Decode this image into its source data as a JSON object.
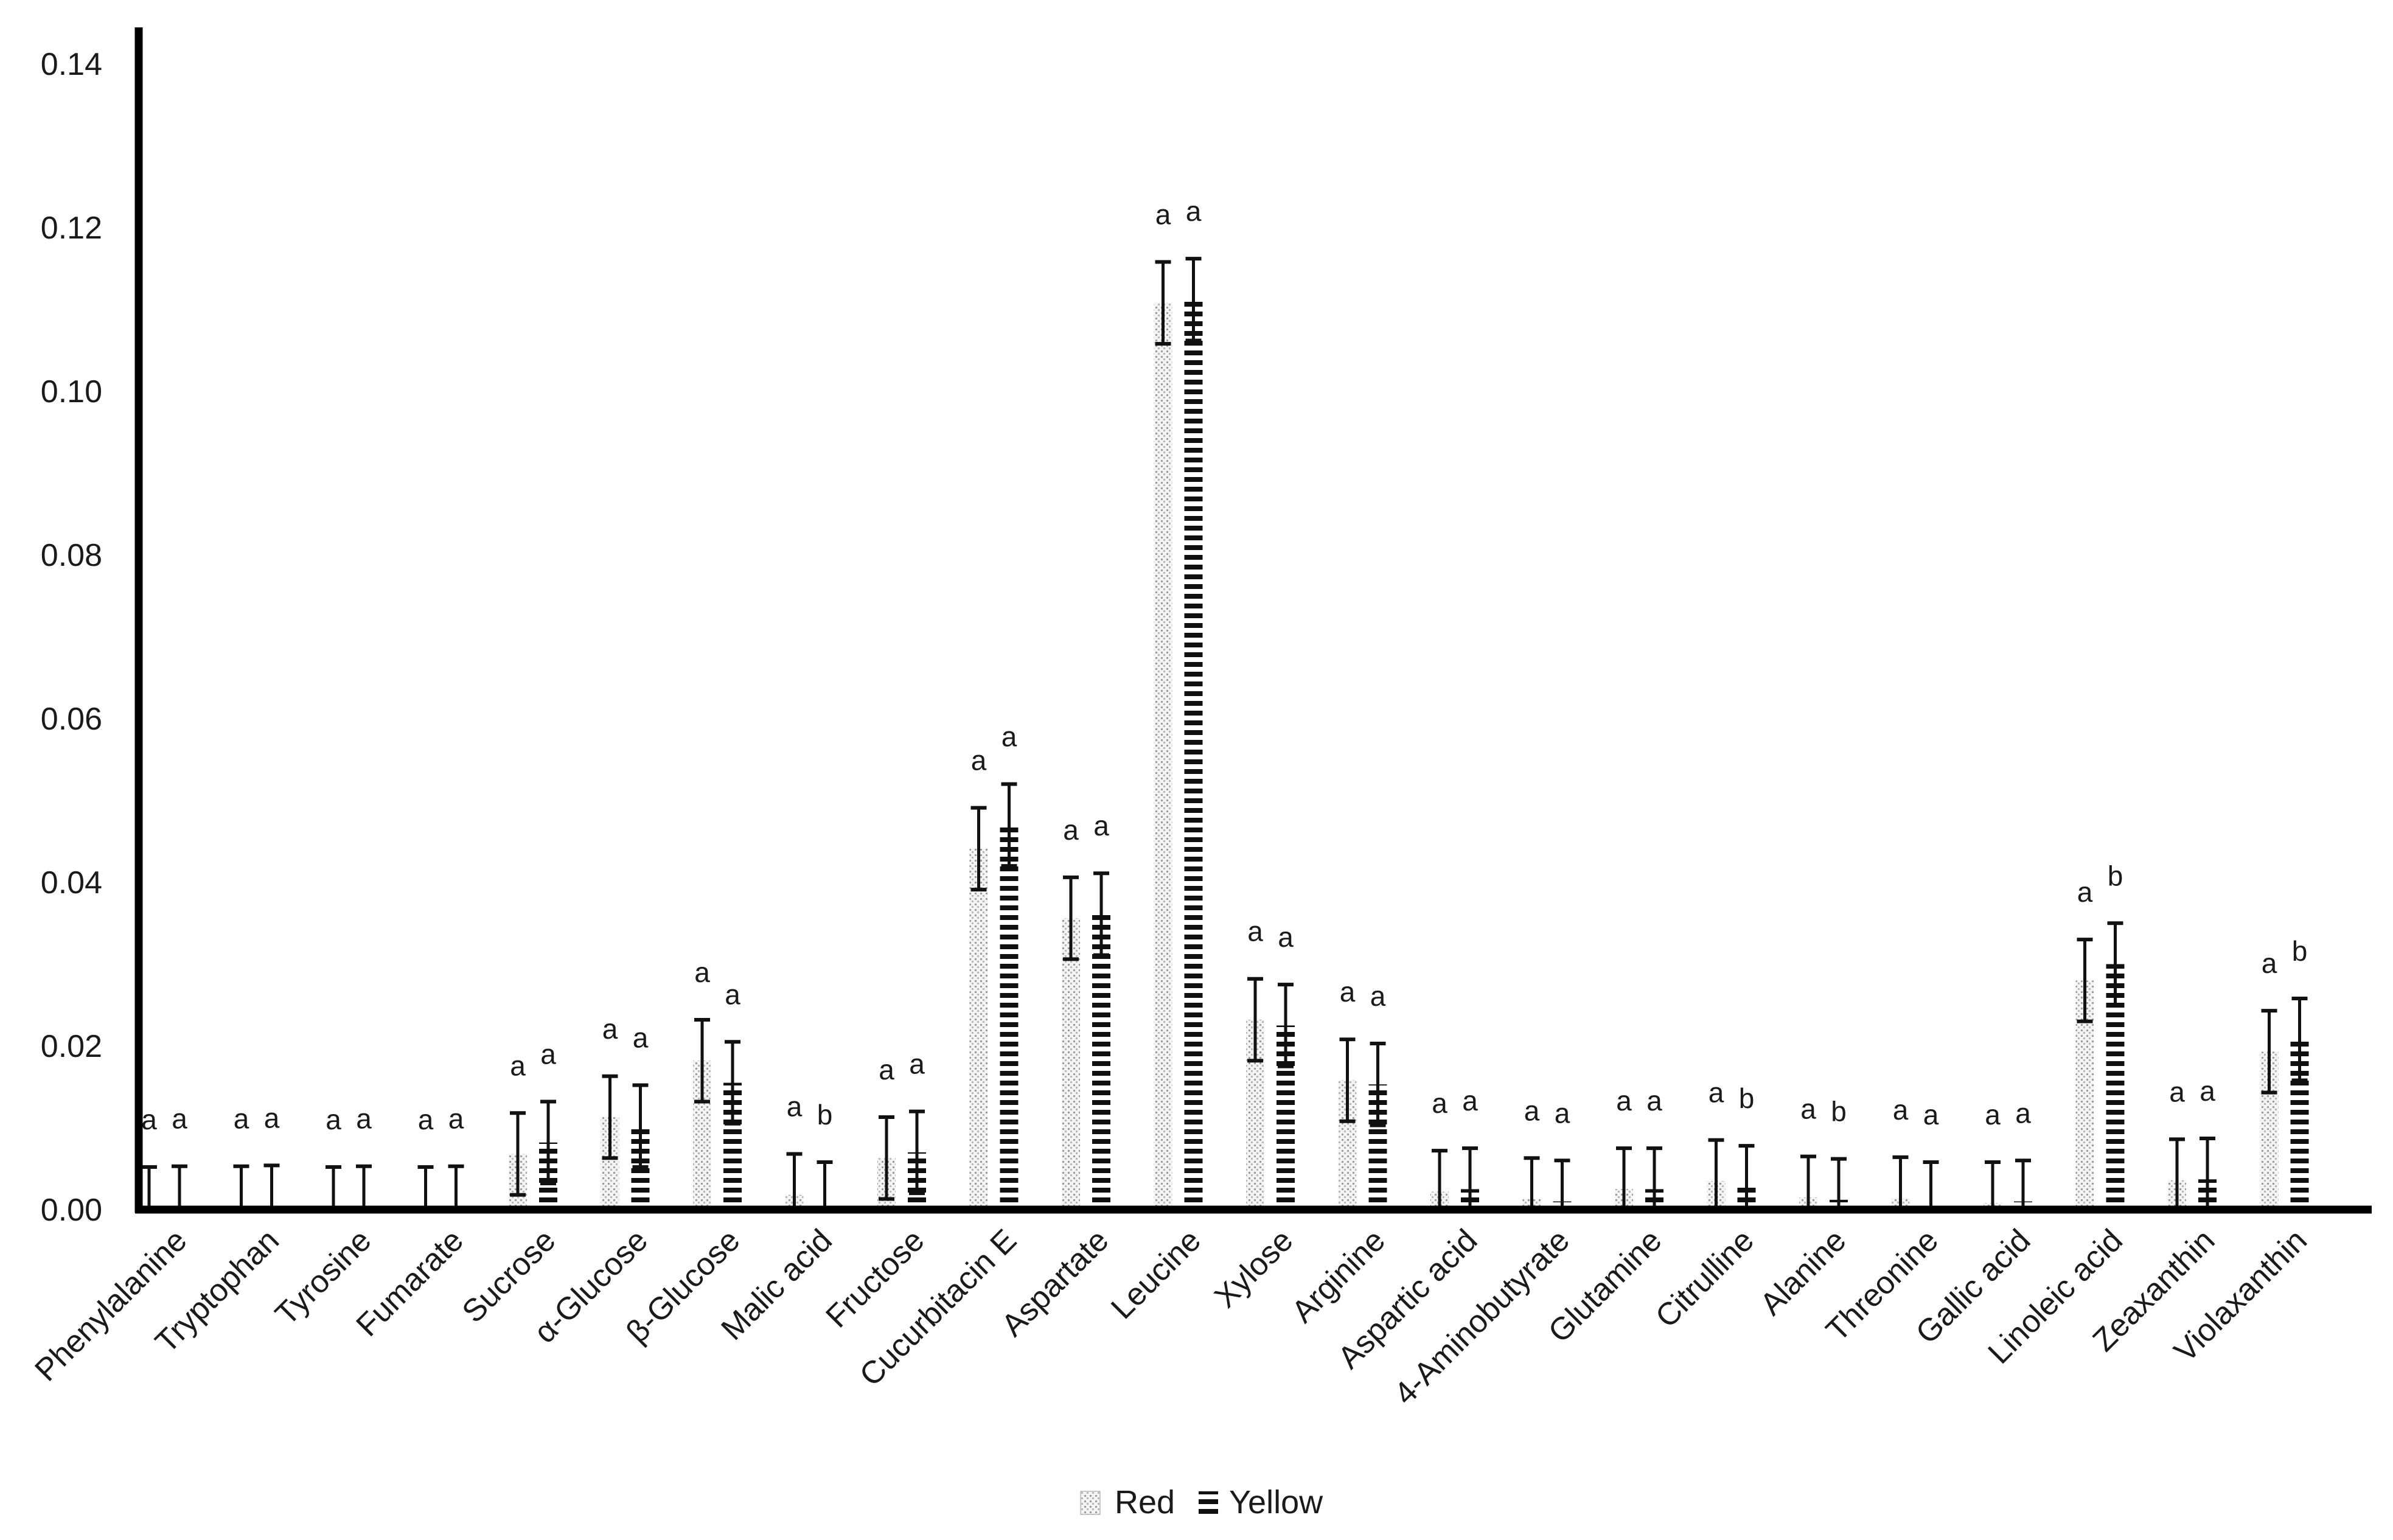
{
  "chart_data": {
    "type": "bar",
    "title": "",
    "xlabel": "",
    "ylabel": "",
    "ylim": [
      0,
      0.14
    ],
    "yticks": [
      "0.00",
      "0.02",
      "0.04",
      "0.06",
      "0.08",
      "0.10",
      "0.12",
      "0.14"
    ],
    "grid": false,
    "legend_position": "bottom",
    "categories": [
      "Phenylalanine",
      "Tryptophan",
      "Tyrosine",
      "Fumarate",
      "Sucrose",
      "α-Glucose",
      "β-Glucose",
      "Malic acid",
      "Fructose",
      "Cucurbitacin E",
      "Aspartate",
      "Leucine",
      "Xylose",
      "Arginine",
      "Aspartic acid",
      "4-Aminobutyrate",
      "Glutamine",
      "Citrulline",
      "Alanine",
      "Threonine",
      "Gallic acid",
      "Linoleic acid",
      "Zeaxanthin",
      "Violaxanthin"
    ],
    "series": [
      {
        "name": "Red",
        "values": [
          0.0002,
          0.0003,
          0.0002,
          0.0002,
          0.0068,
          0.0113,
          0.0182,
          0.0018,
          0.0063,
          0.0441,
          0.0356,
          0.1108,
          0.0232,
          0.0158,
          0.0022,
          0.0013,
          0.0025,
          0.0035,
          0.0015,
          0.0014,
          0.0008,
          0.028,
          0.0036,
          0.0193
        ],
        "errors": [
          0.005,
          0.005,
          0.005,
          0.005,
          0.005,
          0.005,
          0.005,
          0.005,
          0.005,
          0.005,
          0.005,
          0.005,
          0.005,
          0.005,
          0.005,
          0.005,
          0.005,
          0.005,
          0.005,
          0.005,
          0.005,
          0.005,
          0.005,
          0.005
        ],
        "letters": [
          "a",
          "a",
          "a",
          "a",
          "a",
          "a",
          "a",
          "a",
          "a",
          "a",
          "a",
          "a",
          "a",
          "a",
          "a",
          "a",
          "a",
          "a",
          "a",
          "a",
          "a",
          "a",
          "a",
          "a"
        ]
      },
      {
        "name": "Yellow",
        "values": [
          0.0003,
          0.0004,
          0.0003,
          0.0003,
          0.0082,
          0.0102,
          0.0155,
          0.0008,
          0.007,
          0.047,
          0.0361,
          0.1112,
          0.0225,
          0.0153,
          0.0025,
          0.001,
          0.0025,
          0.0028,
          0.0012,
          0.0008,
          0.001,
          0.03,
          0.0037,
          0.0208
        ],
        "errors": [
          0.005,
          0.005,
          0.005,
          0.005,
          0.005,
          0.005,
          0.005,
          0.005,
          0.005,
          0.005,
          0.005,
          0.005,
          0.005,
          0.005,
          0.005,
          0.005,
          0.005,
          0.005,
          0.005,
          0.005,
          0.005,
          0.005,
          0.005,
          0.005
        ],
        "letters": [
          "a",
          "a",
          "a",
          "a",
          "a",
          "a",
          "a",
          "b",
          "a",
          "a",
          "a",
          "a",
          "a",
          "a",
          "a",
          "a",
          "a",
          "b",
          "b",
          "a",
          "a",
          "b",
          "a",
          "b"
        ]
      }
    ],
    "colors": {
      "red_series": "#d0d0d0",
      "yellow_series": "#111111",
      "axis": "#000000",
      "text": "#1a1a1a"
    }
  }
}
